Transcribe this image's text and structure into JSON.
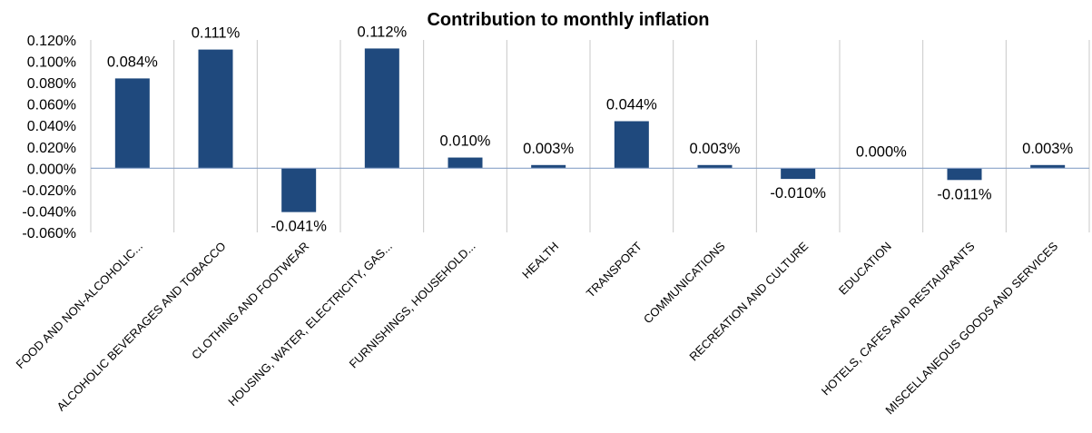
{
  "chart_data": {
    "type": "bar",
    "title": "Contribution to monthly inflation",
    "categories": [
      "FOOD AND NON-ALCOHOLIC...",
      "ALCOHOLIC BEVERAGES AND  TOBACCO",
      "CLOTHING AND FOOTWEAR",
      "HOUSING, WATER, ELECTRICITY, GAS...",
      "FURNISHINGS, HOUSEHOLD...",
      "HEALTH",
      "TRANSPORT",
      "COMMUNICATIONS",
      "RECREATION AND CULTURE",
      "EDUCATION",
      "HOTELS, CAFES AND RESTAURANTS",
      "MISCELLANEOUS GOODS AND SERVICES"
    ],
    "values": [
      0.084,
      0.111,
      -0.041,
      0.112,
      0.01,
      0.003,
      0.044,
      0.003,
      -0.01,
      0.0,
      -0.011,
      0.003
    ],
    "data_labels": [
      "0.084%",
      "0.111%",
      "-0.041%",
      "0.112%",
      "0.010%",
      "0.003%",
      "0.044%",
      "0.003%",
      "-0.010%",
      "0.000%",
      "-0.011%",
      "0.003%"
    ],
    "y_ticks": [
      "0.120%",
      "0.100%",
      "0.080%",
      "0.060%",
      "0.040%",
      "0.020%",
      "0.000%",
      "-0.020%",
      "-0.040%",
      "-0.060%"
    ],
    "ylim": [
      -0.06,
      0.12
    ],
    "xlabel": "",
    "ylabel": "",
    "bar_color": "#1f497d",
    "grid": "vertical separators between categories",
    "legend": "none"
  }
}
